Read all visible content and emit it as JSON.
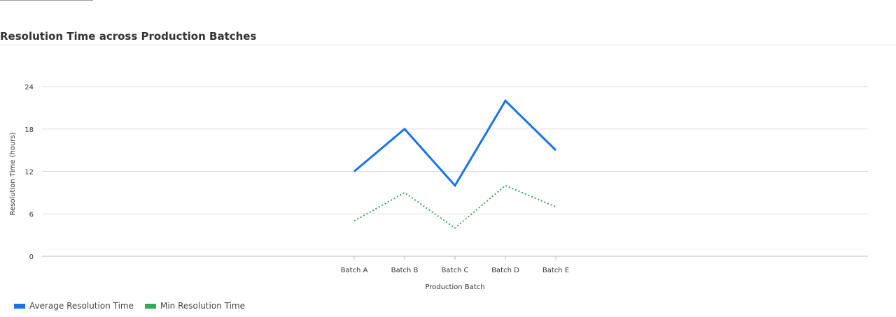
{
  "chart_data": {
    "type": "line",
    "title": "Resolution Time across Production Batches",
    "xlabel": "Production Batch",
    "ylabel": "Resolution Time (hours)",
    "categories": [
      "Batch A",
      "Batch B",
      "Batch C",
      "Batch D",
      "Batch E"
    ],
    "ylim": [
      0,
      24
    ],
    "yticks": [
      0,
      6,
      12,
      18,
      24
    ],
    "grid": true,
    "legend_position": "bottom-left",
    "series": [
      {
        "name": "Average Resolution Time",
        "values": [
          12,
          18,
          10,
          22,
          15
        ],
        "color": "#1a73e8",
        "style": "solid"
      },
      {
        "name": "Min Resolution Time",
        "values": [
          5,
          9,
          4,
          10,
          7
        ],
        "color": "#34a853",
        "style": "dotted"
      }
    ]
  }
}
